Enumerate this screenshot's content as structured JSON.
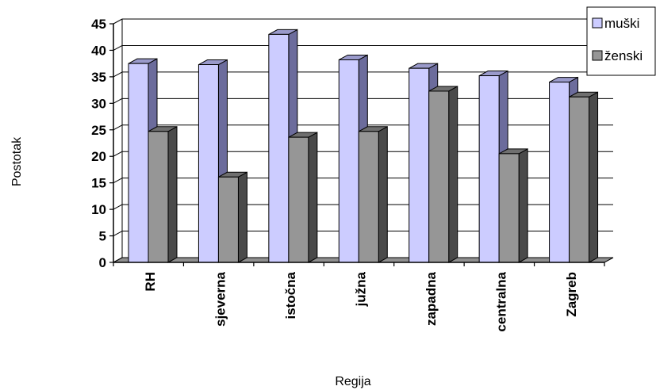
{
  "chart_data": {
    "type": "bar",
    "categories": [
      "RH",
      "sjeverna",
      "istočna",
      "južna",
      "zapadna",
      "centralna",
      "Zagreb"
    ],
    "series": [
      {
        "name": "muški",
        "values": [
          37.5,
          37.3,
          43.0,
          38.2,
          36.6,
          35.2,
          34.0
        ]
      },
      {
        "name": "ženski",
        "values": [
          24.7,
          16.1,
          23.6,
          24.7,
          32.3,
          20.5,
          31.2
        ]
      }
    ],
    "xlabel": "Regija",
    "ylabel": "Postotak",
    "ylim": [
      0,
      45
    ],
    "yticks": [
      "0",
      "5",
      "10",
      "15",
      "20",
      "25",
      "30",
      "35",
      "40",
      "45"
    ],
    "grid": true,
    "legend_position": "top-right",
    "colors": {
      "muski_front": "#ccccff",
      "muski_side": "#6c6c9c",
      "muski_top": "#9a9acb",
      "zenski_front": "#969696",
      "zenski_side": "#4a4a4a",
      "zenski_top": "#6f6f6f",
      "floor": "#909090"
    }
  }
}
